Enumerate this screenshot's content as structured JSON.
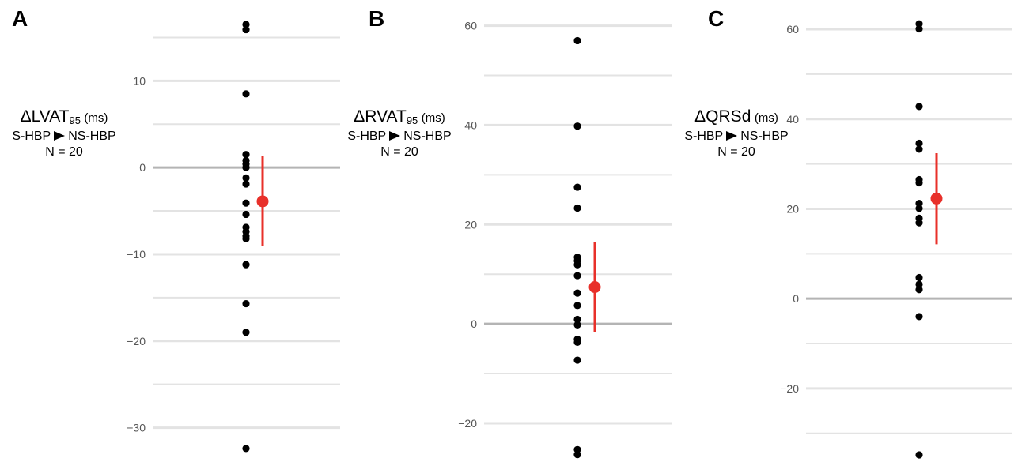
{
  "colors": {
    "point": "#000000",
    "mean": "#e8302a",
    "grid": "#e3e3e3",
    "zero": "#b4b4b4",
    "ticks": "#555555"
  },
  "chart_data": [
    {
      "type": "scatter",
      "panel": "A",
      "title_main": "ΔLVAT",
      "title_sub": "95",
      "unit": "(ms)",
      "comparison_from": "S-HBP",
      "comparison_to": "NS-HBP",
      "n_label": "N = 20",
      "yticks": [
        10,
        0,
        -10,
        -20,
        -30
      ],
      "ytick_labels": [
        "10",
        "0",
        "−10",
        "−20",
        "−30"
      ],
      "ylim": [
        -33.5,
        17.5
      ],
      "values": [
        16.5,
        15.9,
        8.5,
        1.5,
        0.8,
        0.4,
        0,
        -1.2,
        -1.9,
        -4.1,
        -5.4,
        -6.9,
        -7.4,
        -7.9,
        -8.2,
        -11.2,
        -15.7,
        -19.0,
        -32.4
      ],
      "mean": -3.9,
      "ci": [
        -9.0,
        1.3
      ]
    },
    {
      "type": "scatter",
      "panel": "B",
      "title_main": "ΔRVAT",
      "title_sub": "95",
      "unit": "(ms)",
      "comparison_from": "S-HBP",
      "comparison_to": "NS-HBP",
      "n_label": "N = 20",
      "yticks": [
        60,
        40,
        20,
        0,
        -20
      ],
      "ytick_labels": [
        "60",
        "40",
        "20",
        "0",
        "−20"
      ],
      "ylim": [
        -27,
        62
      ],
      "values": [
        57.0,
        39.8,
        27.5,
        23.3,
        13.4,
        12.7,
        11.9,
        9.7,
        6.2,
        3.7,
        0.9,
        -0.2,
        -3.1,
        -3.7,
        -7.3,
        -25.3,
        -26.3
      ],
      "mean": 7.4,
      "ci": [
        -1.7,
        16.5
      ]
    },
    {
      "type": "scatter",
      "panel": "C",
      "title_main": "ΔQRSd",
      "title_sub": "",
      "unit": "(ms)",
      "comparison_from": "S-HBP",
      "comparison_to": "NS-HBP",
      "n_label": "N = 20",
      "yticks": [
        60,
        40,
        20,
        0,
        -20
      ],
      "ytick_labels": [
        "60",
        "40",
        "20",
        "0",
        "−20"
      ],
      "ylim": [
        -35.5,
        63
      ],
      "values": [
        61.2,
        60.1,
        42.8,
        34.6,
        33.3,
        26.5,
        25.8,
        21.2,
        20.1,
        17.9,
        16.9,
        4.7,
        3.2,
        2.0,
        -4.0,
        -34.8
      ],
      "mean": 22.3,
      "ci": [
        12.1,
        32.4
      ]
    }
  ]
}
